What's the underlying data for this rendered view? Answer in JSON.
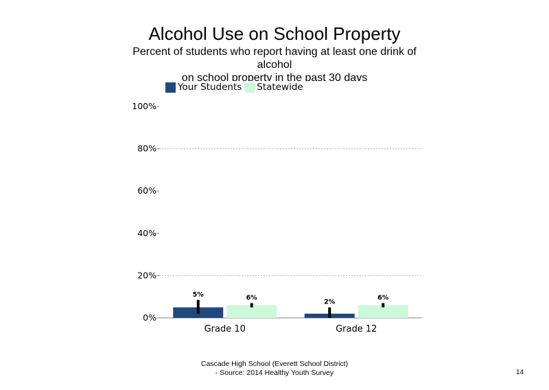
{
  "slide": {
    "title": "Alcohol Use on School  Property",
    "subtitle_lines": [
      "Percent of students  who report having at least one drink of",
      "alcohol",
      "on school property in the past 30 days"
    ],
    "footer_lines": [
      "Cascade High  School (Everett School District)",
      "- Source: 2014 Healthy  Youth Survey"
    ],
    "page_number": "14"
  },
  "chart_data": {
    "type": "bar",
    "categories": [
      "Grade 10",
      "Grade 12"
    ],
    "series": [
      {
        "name": "Your Students",
        "values": [
          5,
          2
        ],
        "labels": [
          "5%",
          "2%"
        ],
        "color": "#1f497d",
        "error_low": [
          2,
          0
        ],
        "error_high": [
          8.5,
          5
        ]
      },
      {
        "name": "Statewide",
        "values": [
          6,
          6
        ],
        "labels": [
          "6%",
          "6%"
        ],
        "color": "#ccf9d9",
        "error_low": [
          5,
          5
        ],
        "error_high": [
          7,
          7
        ]
      }
    ],
    "ylim": [
      0,
      100
    ],
    "yticks": [
      0,
      20,
      40,
      60,
      80,
      100
    ],
    "ytick_labels": [
      "0%",
      "20%",
      "40%",
      "60%",
      "80%",
      "100%"
    ],
    "gridlines": [
      20,
      80
    ],
    "legend_position": "top",
    "error_bar_color": "#000000"
  }
}
